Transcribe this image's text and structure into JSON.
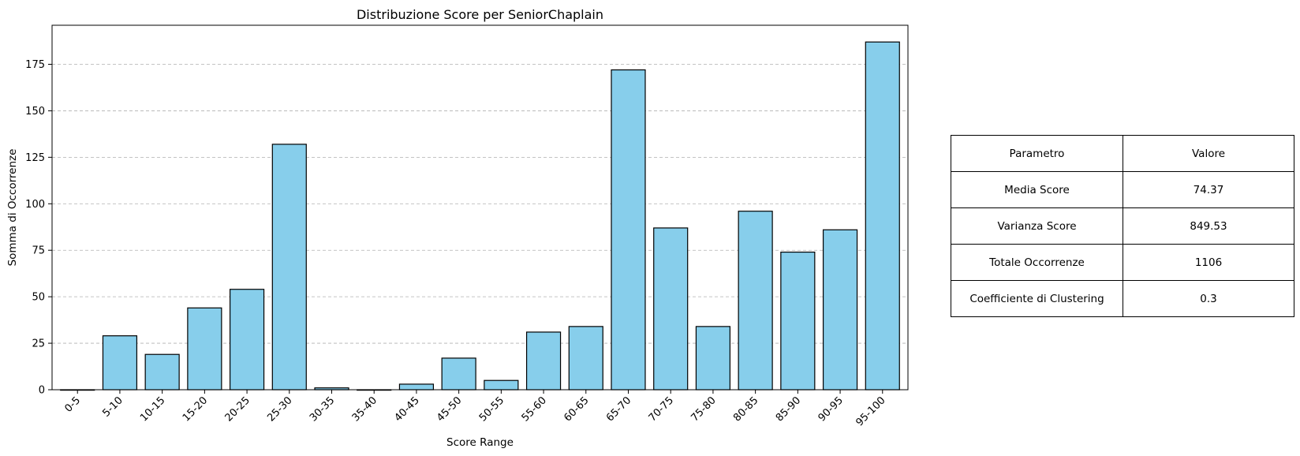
{
  "chart_data": {
    "type": "bar",
    "title": "Distribuzione Score per SeniorChaplain",
    "xlabel": "Score Range",
    "ylabel": "Somma di Occorrenze",
    "categories": [
      "0-5",
      "5-10",
      "10-15",
      "15-20",
      "20-25",
      "25-30",
      "30-35",
      "35-40",
      "40-45",
      "45-50",
      "50-55",
      "55-60",
      "60-65",
      "65-70",
      "70-75",
      "75-80",
      "80-85",
      "85-90",
      "90-95",
      "95-100"
    ],
    "values": [
      0,
      29,
      19,
      44,
      54,
      132,
      1,
      0,
      3,
      17,
      5,
      31,
      34,
      172,
      87,
      34,
      96,
      74,
      86,
      187
    ],
    "ylim": [
      0,
      196
    ],
    "yticks": [
      0,
      25,
      50,
      75,
      100,
      125,
      150,
      175
    ],
    "grid": "y-dashed",
    "bar_color": "#87ceeb",
    "edge_color": "#000000"
  },
  "table": {
    "header": [
      "Parametro",
      "Valore"
    ],
    "rows": [
      [
        "Media Score",
        "74.37"
      ],
      [
        "Varianza Score",
        "849.53"
      ],
      [
        "Totale Occorrenze",
        "1106"
      ],
      [
        "Coefficiente di Clustering",
        "0.3"
      ]
    ]
  }
}
